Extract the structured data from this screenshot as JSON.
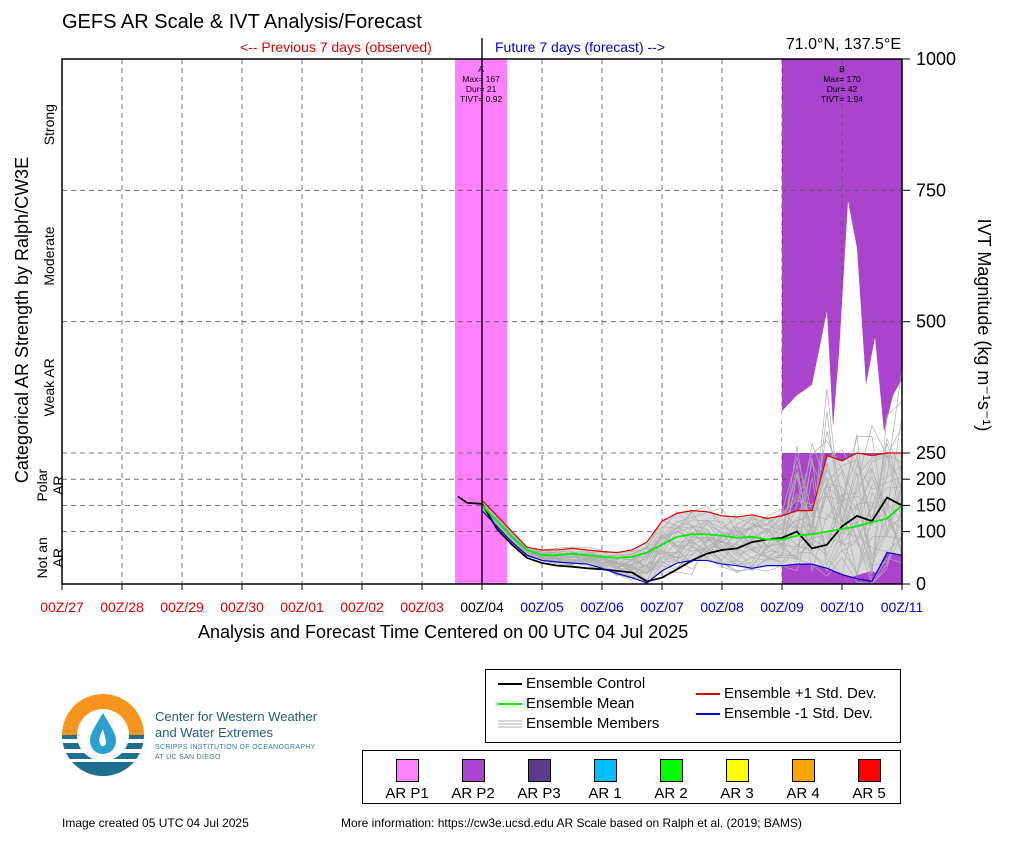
{
  "header": {
    "title": "GEFS AR Scale & IVT Analysis/Forecast",
    "prev_label": "<-- Previous 7 days (observed)",
    "future_label": "Future 7 days (forecast) -->",
    "location": "71.0°N, 137.5°E"
  },
  "footer": {
    "created": "Image created 05 UTC 04 Jul 2025",
    "more_info": "More information: https://cw3e.ucsd.edu AR Scale based on Ralph et al. (2019; BAMS)"
  },
  "logo": {
    "name_line1": "Center for Western Weather",
    "name_line2": "and Water Extremes",
    "sub_line1": "SCRIPPS INSTITUTION OF OCEANOGRAPHY",
    "sub_line2": "AT UC SAN DIEGO"
  },
  "colors": {
    "control": "#000000",
    "mean": "#00ee00",
    "members": "#b0b0b0",
    "plus_std": "#dd0000",
    "minus_std": "#0000dd",
    "spread_fill": "#d8d8d8",
    "ar_p1": "#ff80ff",
    "ar_p2": "#aa44cc"
  },
  "legend_lines": [
    {
      "label": "Ensemble Control",
      "color": "#000000",
      "style": "solid"
    },
    {
      "label": "Ensemble Mean",
      "color": "#00ee00",
      "style": "solid"
    },
    {
      "label": "Ensemble Members",
      "color": "#b0b0b0",
      "style": "multi"
    },
    {
      "label": "Ensemble +1 Std. Dev.",
      "color": "#dd0000",
      "style": "solid"
    },
    {
      "label": "Ensemble -1 Std. Dev.",
      "color": "#0000dd",
      "style": "solid"
    }
  ],
  "legend_categories": [
    {
      "label": "AR P1",
      "color": "#ff80ff"
    },
    {
      "label": "AR P2",
      "color": "#aa44cc"
    },
    {
      "label": "AR P3",
      "color": "#5b3c8c"
    },
    {
      "label": "AR 1",
      "color": "#00bfff"
    },
    {
      "label": "AR 2",
      "color": "#00ff00"
    },
    {
      "label": "AR 3",
      "color": "#ffff00"
    },
    {
      "label": "AR 4",
      "color": "#ffa500"
    },
    {
      "label": "AR 5",
      "color": "#ff0000"
    }
  ],
  "chart_data": {
    "type": "line",
    "title": "GEFS AR Scale & IVT Analysis/Forecast",
    "xlabel": "Analysis and Forecast Time Centered on 00 UTC 04 Jul 2025",
    "ylabel_right": "IVT Magnitude (kg m⁻¹s⁻¹)",
    "ylabel_left": "Categorical AR Strength by Ralph/CW3E",
    "left_categories": [
      "Strong",
      "Moderate",
      "Weak AR",
      "Polar AR",
      "Not an AR"
    ],
    "x_ticks": [
      {
        "label": "00Z/27",
        "color": "#e00000"
      },
      {
        "label": "00Z/28",
        "color": "#e00000"
      },
      {
        "label": "00Z/29",
        "color": "#e00000"
      },
      {
        "label": "00Z/30",
        "color": "#e00000"
      },
      {
        "label": "00Z/01",
        "color": "#e00000"
      },
      {
        "label": "00Z/02",
        "color": "#e00000"
      },
      {
        "label": "00Z/03",
        "color": "#e00000"
      },
      {
        "label": "00Z/04",
        "color": "#000000"
      },
      {
        "label": "00Z/05",
        "color": "#0000dd"
      },
      {
        "label": "00Z/06",
        "color": "#0000dd"
      },
      {
        "label": "00Z/07",
        "color": "#0000dd"
      },
      {
        "label": "00Z/08",
        "color": "#0000dd"
      },
      {
        "label": "00Z/09",
        "color": "#0000dd"
      },
      {
        "label": "00Z/10",
        "color": "#0000dd"
      },
      {
        "label": "00Z/11",
        "color": "#0000dd"
      }
    ],
    "xlim_days": [
      -7,
      7
    ],
    "y_ticks": [
      0,
      100,
      150,
      200,
      250,
      500,
      750,
      1000
    ],
    "ylim": [
      0,
      1000
    ],
    "grid": true,
    "ar_events": [
      {
        "x_start": -0.45,
        "x_end": 0.42,
        "category": "AR P1",
        "color": "#ff80ff",
        "label_letter": "A",
        "max": "Max= 167",
        "dur": "Dur= 21",
        "tivt": "TIVT= 0.92"
      },
      {
        "x_start": 5.0,
        "x_end": 7.0,
        "category": "AR P2",
        "color": "#aa44cc",
        "label_letter": "B",
        "max": "Max= 170",
        "dur": "Dur= 42",
        "tivt": "TIVT= 1.94"
      }
    ],
    "series": [
      {
        "name": "Ensemble Control",
        "color": "#000000",
        "x": [
          -0.4,
          -0.25,
          0,
          0.25,
          0.5,
          0.75,
          1,
          1.25,
          1.5,
          1.75,
          2,
          2.25,
          2.5,
          2.75,
          3,
          3.25,
          3.5,
          3.75,
          4,
          4.25,
          4.5,
          4.75,
          5,
          5.25,
          5.5,
          5.75,
          6,
          6.25,
          6.5,
          6.75,
          7
        ],
        "y": [
          167,
          155,
          153,
          105,
          75,
          50,
          40,
          35,
          33,
          30,
          28,
          25,
          22,
          5,
          12,
          28,
          45,
          58,
          65,
          68,
          80,
          85,
          88,
          100,
          68,
          75,
          110,
          130,
          120,
          165,
          150
        ]
      },
      {
        "name": "Ensemble Mean",
        "color": "#00ee00",
        "x": [
          -0.4,
          0,
          0.25,
          0.5,
          0.75,
          1,
          1.25,
          1.5,
          1.75,
          2,
          2.25,
          2.5,
          2.75,
          3,
          3.25,
          3.5,
          3.75,
          4,
          4.25,
          4.5,
          4.75,
          5,
          5.25,
          5.5,
          5.75,
          6,
          6.25,
          6.5,
          6.75,
          7
        ],
        "y": [
          null,
          150,
          120,
          90,
          65,
          55,
          55,
          58,
          55,
          52,
          50,
          52,
          60,
          75,
          90,
          95,
          95,
          92,
          88,
          90,
          85,
          85,
          92,
          95,
          100,
          105,
          110,
          118,
          125,
          150
        ]
      },
      {
        "name": "Ensemble +1 Std. Dev.",
        "color": "#dd0000",
        "x": [
          0,
          0.25,
          0.5,
          0.75,
          1,
          1.25,
          1.5,
          1.75,
          2,
          2.25,
          2.5,
          2.75,
          3,
          3.25,
          3.5,
          3.75,
          4,
          4.25,
          4.5,
          4.75,
          5,
          5.25,
          5.5,
          5.75,
          6,
          6.25,
          6.5,
          6.75,
          7
        ],
        "y": [
          160,
          130,
          100,
          70,
          65,
          65,
          68,
          65,
          62,
          60,
          65,
          80,
          120,
          135,
          140,
          138,
          130,
          128,
          132,
          125,
          130,
          140,
          140,
          245,
          235,
          250,
          245,
          250,
          250
        ]
      },
      {
        "name": "Ensemble -1 Std. Dev.",
        "color": "#0000dd",
        "x": [
          0,
          0.25,
          0.5,
          0.75,
          1,
          1.25,
          1.5,
          1.75,
          2,
          2.25,
          2.5,
          2.75,
          3,
          3.25,
          3.5,
          3.75,
          4,
          4.25,
          4.5,
          4.75,
          5,
          5.25,
          5.5,
          5.75,
          6,
          6.25,
          6.5,
          6.75,
          7
        ],
        "y": [
          140,
          110,
          80,
          55,
          45,
          42,
          40,
          38,
          30,
          20,
          12,
          2,
          25,
          40,
          45,
          45,
          38,
          35,
          30,
          35,
          35,
          38,
          38,
          30,
          18,
          10,
          5,
          60,
          55
        ]
      }
    ]
  }
}
